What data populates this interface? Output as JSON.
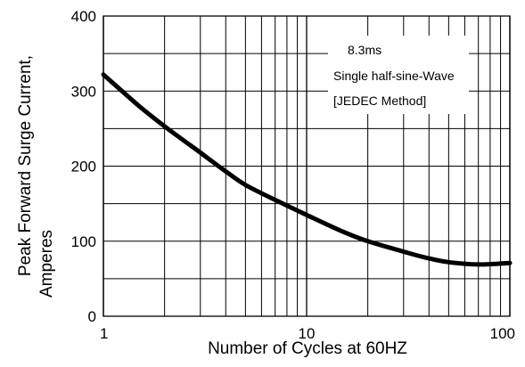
{
  "chart_data": {
    "type": "line",
    "xlabel": "Number of Cycles at 60HZ",
    "ylabel_lines": [
      "Peak Forward Surge Current,",
      "Amperes"
    ],
    "x_scale": "log",
    "xlim": [
      1,
      100
    ],
    "ylim": [
      0,
      400
    ],
    "grid": true,
    "x_ticks": [
      {
        "value": 1,
        "label": "1"
      },
      {
        "value": 10,
        "label": "10"
      },
      {
        "value": 100,
        "label": "100"
      }
    ],
    "y_ticks": [
      {
        "value": 0,
        "label": "0"
      },
      {
        "value": 100,
        "label": "100"
      },
      {
        "value": 200,
        "label": "200"
      },
      {
        "value": 300,
        "label": "300"
      },
      {
        "value": 400,
        "label": "400"
      }
    ],
    "y_minor": [
      50,
      150,
      250,
      350
    ],
    "annotation_lines": [
      "8.3ms",
      "Single half-sine-Wave",
      "[JEDEC Method]"
    ],
    "series": [
      {
        "color": "#000000",
        "x": [
          1,
          1.5,
          2,
          3,
          4,
          5,
          7,
          10,
          15,
          20,
          30,
          40,
          50,
          70,
          100
        ],
        "y": [
          322,
          280,
          253,
          218,
          193,
          175,
          155,
          135,
          113,
          100,
          86,
          77,
          72,
          69,
          71
        ]
      }
    ]
  }
}
